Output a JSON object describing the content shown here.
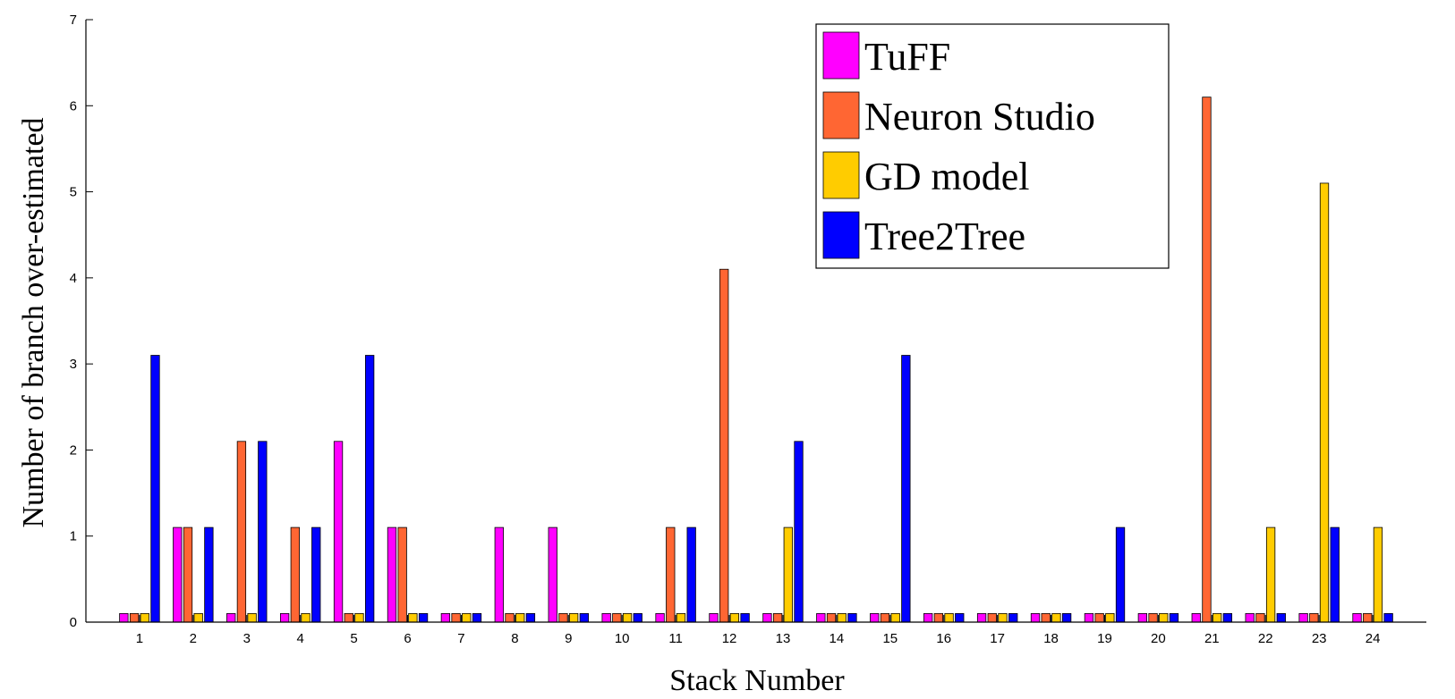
{
  "colors": {
    "tuff": "#ff00ff",
    "neuron_studio": "#ff6633",
    "gd_model": "#ffcc00",
    "tree2tree": "#0000ff"
  },
  "chart_data": {
    "type": "bar",
    "title": "",
    "xlabel": "Stack Number",
    "ylabel": "Number of branch over-estimated",
    "ylim": [
      0,
      7
    ],
    "yticks": [
      "0",
      "1",
      "2",
      "3",
      "4",
      "5",
      "6",
      "7"
    ],
    "categories": [
      "1",
      "2",
      "3",
      "4",
      "5",
      "6",
      "7",
      "8",
      "9",
      "10",
      "11",
      "12",
      "13",
      "14",
      "15",
      "16",
      "17",
      "18",
      "19",
      "20",
      "21",
      "22",
      "23",
      "24"
    ],
    "legend_position": "top-right",
    "grid": false,
    "series": [
      {
        "name": "TuFF",
        "color": "#ff00ff",
        "values": [
          0.1,
          1.1,
          0.1,
          0.1,
          2.1,
          1.1,
          0.1,
          1.1,
          1.1,
          0.1,
          0.1,
          0.1,
          0.1,
          0.1,
          0.1,
          0.1,
          0.1,
          0.1,
          0.1,
          0.1,
          0.1,
          0.1,
          0.1,
          0.1
        ]
      },
      {
        "name": "Neuron Studio",
        "color": "#ff6633",
        "values": [
          0.1,
          1.1,
          2.1,
          1.1,
          0.1,
          1.1,
          0.1,
          0.1,
          0.1,
          0.1,
          1.1,
          4.1,
          0.1,
          0.1,
          0.1,
          0.1,
          0.1,
          0.1,
          0.1,
          0.1,
          6.1,
          0.1,
          0.1,
          0.1
        ]
      },
      {
        "name": "GD model",
        "color": "#ffcc00",
        "values": [
          0.1,
          0.1,
          0.1,
          0.1,
          0.1,
          0.1,
          0.1,
          0.1,
          0.1,
          0.1,
          0.1,
          0.1,
          1.1,
          0.1,
          0.1,
          0.1,
          0.1,
          0.1,
          0.1,
          0.1,
          0.1,
          1.1,
          5.1,
          1.1
        ]
      },
      {
        "name": "Tree2Tree",
        "color": "#0000ff",
        "values": [
          3.1,
          1.1,
          2.1,
          1.1,
          3.1,
          0.1,
          0.1,
          0.1,
          0.1,
          0.1,
          1.1,
          0.1,
          2.1,
          0.1,
          3.1,
          0.1,
          0.1,
          0.1,
          1.1,
          0.1,
          0.1,
          0.1,
          1.1,
          0.1
        ]
      }
    ]
  }
}
